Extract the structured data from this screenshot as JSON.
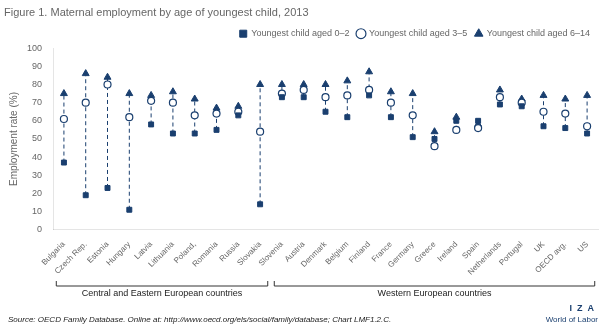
{
  "chart_data": {
    "type": "scatter",
    "title": "Figure 1. Maternal employment by age of youngest child, 2013",
    "ylabel": "Employment rate (%)",
    "source": "Source: OECD Family Database. Online at: http://www.oecd.org/els/social/family/database; Chart LMF1.2.C.",
    "annotations": [
      "I  Z  A",
      "World of Labor"
    ],
    "categories": [
      "Bulgaria",
      "Czech Rep.",
      "Estonia",
      "Hungary",
      "Latvia",
      "Lithuania",
      "Poland,",
      "Romania",
      "Russia",
      "Slovakia",
      "Slovenia",
      "Austria",
      "Denmark",
      "Belgium",
      "Finland",
      "France",
      "Germany",
      "Greece",
      "Ireland",
      "Spain",
      "Netherlands",
      "Portugal",
      "UK",
      "OECD avg.",
      "US"
    ],
    "groups": [
      {
        "label": "Central and Eastern European countries",
        "first": "Bulgaria",
        "last": "Slovakia"
      },
      {
        "label": "Western European countries",
        "first": "Slovenia",
        "last": "US"
      }
    ],
    "series": [
      {
        "name": "Youngest child aged 0–2",
        "color": "#1a3f6f",
        "marker": "square",
        "values": [
          37,
          19,
          23,
          11,
          58,
          53,
          53,
          55,
          63,
          14,
          73,
          73,
          65,
          62,
          74,
          62,
          51,
          50,
          60,
          60,
          69,
          68,
          57,
          56,
          53
        ]
      },
      {
        "name": "Youngest child aged 3–5",
        "color": "#1a3f6f",
        "marker": "open_circle",
        "values": [
          61,
          70,
          80,
          62,
          71,
          70,
          63,
          64,
          65,
          54,
          75,
          77,
          73,
          74,
          77,
          70,
          63,
          46,
          55,
          56,
          73,
          70,
          65,
          64,
          57
        ]
      },
      {
        "name": "Youngest child aged 6–14",
        "color": "#1a3f6f",
        "marker": "triangle",
        "values": [
          75,
          86,
          84,
          75,
          74,
          76,
          72,
          67,
          68,
          80,
          80,
          80,
          80,
          82,
          87,
          76,
          75,
          54,
          62,
          58,
          77,
          72,
          74,
          72,
          74
        ]
      }
    ],
    "ylim": [
      0,
      100
    ],
    "yticks": [
      0,
      10,
      20,
      30,
      40,
      50,
      60,
      70,
      80,
      90,
      100
    ],
    "grid": false,
    "legend": "upper right"
  }
}
